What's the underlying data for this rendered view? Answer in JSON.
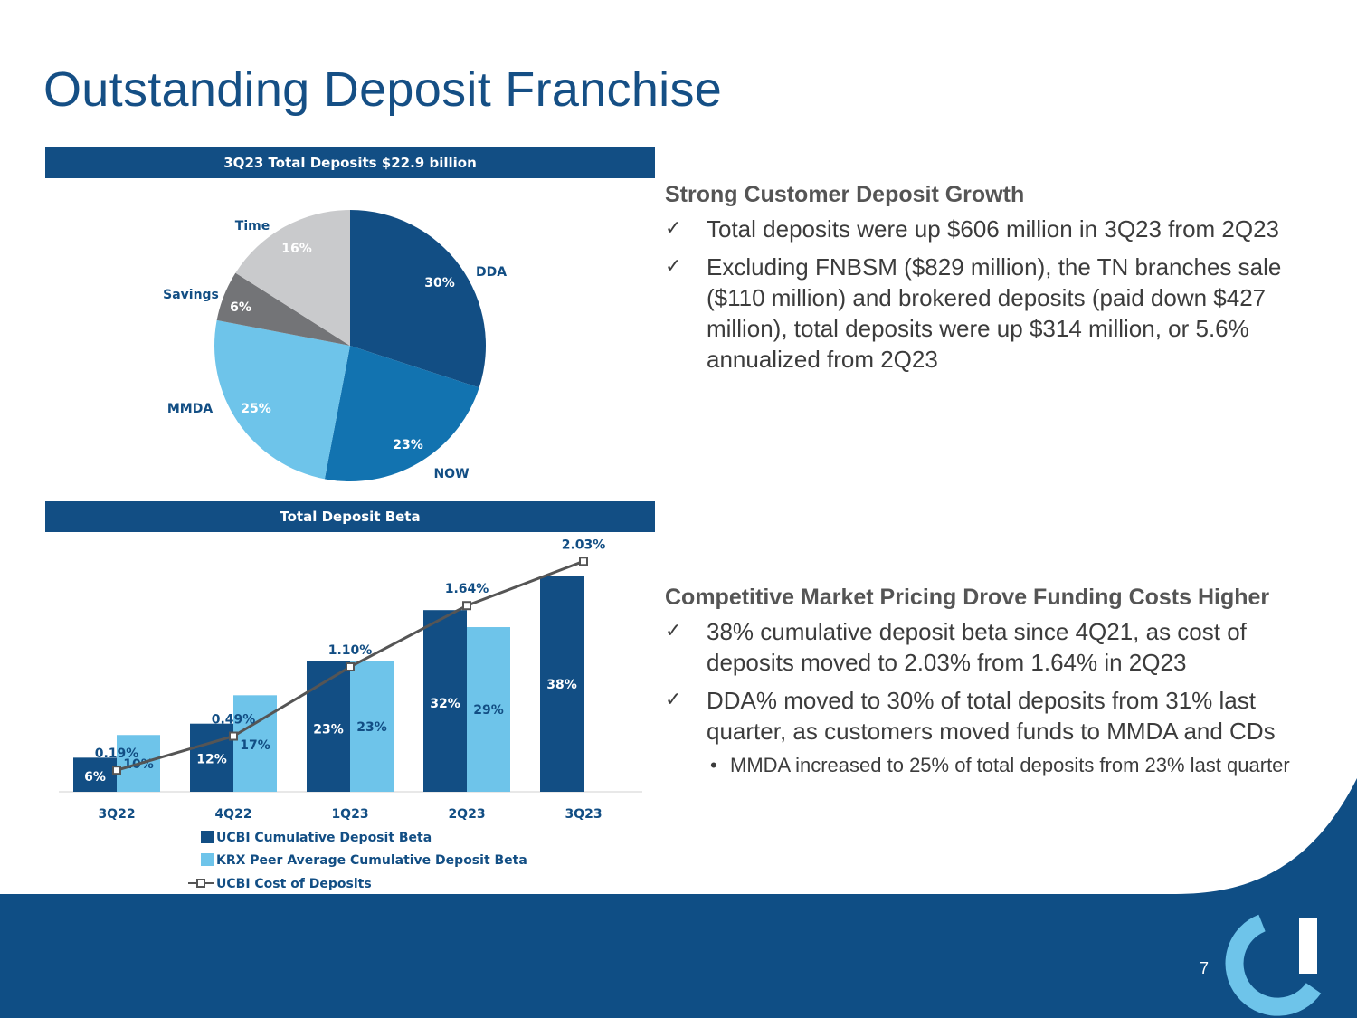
{
  "slide": {
    "title": "Outstanding Deposit Franchise",
    "page_number": "7"
  },
  "colors": {
    "navy": "#124e84",
    "dark_blue": "#0f4e85",
    "mid_blue": "#1273b0",
    "light_blue": "#6ec4ea",
    "grey": "#737477",
    "light_grey": "#c9cacc",
    "line_grey": "#555555"
  },
  "pie_panel": {
    "header": "3Q23 Total Deposits $22.9 billion"
  },
  "bar_panel": {
    "header": "Total Deposit Beta"
  },
  "chart_data": [
    {
      "type": "pie",
      "title": "3Q23 Total Deposits $22.9 billion",
      "slices": [
        {
          "label": "DDA",
          "value": 30,
          "value_label": "30%",
          "color": "#124e84"
        },
        {
          "label": "NOW",
          "value": 23,
          "value_label": "23%",
          "color": "#1273b0"
        },
        {
          "label": "MMDA",
          "value": 25,
          "value_label": "25%",
          "color": "#6ec4ea"
        },
        {
          "label": "Savings",
          "value": 6,
          "value_label": "6%",
          "color": "#737477"
        },
        {
          "label": "Time",
          "value": 16,
          "value_label": "16%",
          "color": "#c9cacc"
        }
      ]
    },
    {
      "type": "bar",
      "title": "Total Deposit Beta",
      "categories": [
        "3Q22",
        "4Q22",
        "1Q23",
        "2Q23",
        "3Q23"
      ],
      "ylim": [
        0,
        40
      ],
      "y2lim": [
        0,
        2.12
      ],
      "grid": false,
      "legend_position": "bottom-left",
      "series": [
        {
          "name": "UCBI Cumulative Deposit Beta",
          "kind": "bar",
          "color": "#124e84",
          "values": [
            6,
            12,
            23,
            32,
            38
          ],
          "labels": [
            "6%",
            "12%",
            "23%",
            "32%",
            "38%"
          ]
        },
        {
          "name": "KRX Peer Average Cumulative Deposit Beta",
          "kind": "bar",
          "color": "#6ec4ea",
          "values": [
            10,
            17,
            23,
            29,
            null
          ],
          "labels": [
            "10%",
            "17%",
            "23%",
            "29%",
            ""
          ]
        },
        {
          "name": "UCBI Cost of Deposits",
          "kind": "line",
          "color": "#555555",
          "axis": "secondary",
          "values": [
            0.19,
            0.49,
            1.1,
            1.64,
            2.03
          ],
          "labels": [
            "0.19%",
            "0.49%",
            "1.10%",
            "1.64%",
            "2.03%"
          ]
        }
      ]
    }
  ],
  "section1": {
    "heading": "Strong Customer Deposit Growth",
    "bullets": [
      "Total deposits were up $606 million in 3Q23 from 2Q23",
      "Excluding FNBSM ($829 million), the TN branches sale ($110 million) and brokered deposits (paid down $427 million), total deposits were up $314 million, or 5.6% annualized from 2Q23"
    ]
  },
  "section2": {
    "heading": "Competitive Market Pricing Drove Funding Costs Higher",
    "bullets": [
      "38% cumulative deposit beta since 4Q21, as cost of deposits moved to 2.03% from 1.64% in 2Q23",
      "DDA% moved to 30% of total deposits from 31% last quarter, as customers moved funds to MMDA and CDs"
    ],
    "sub_bullets": [
      "MMDA increased to 25% of total deposits from 23% last quarter"
    ],
    "check_glyph": "✓",
    "sub_glyph": "•"
  }
}
